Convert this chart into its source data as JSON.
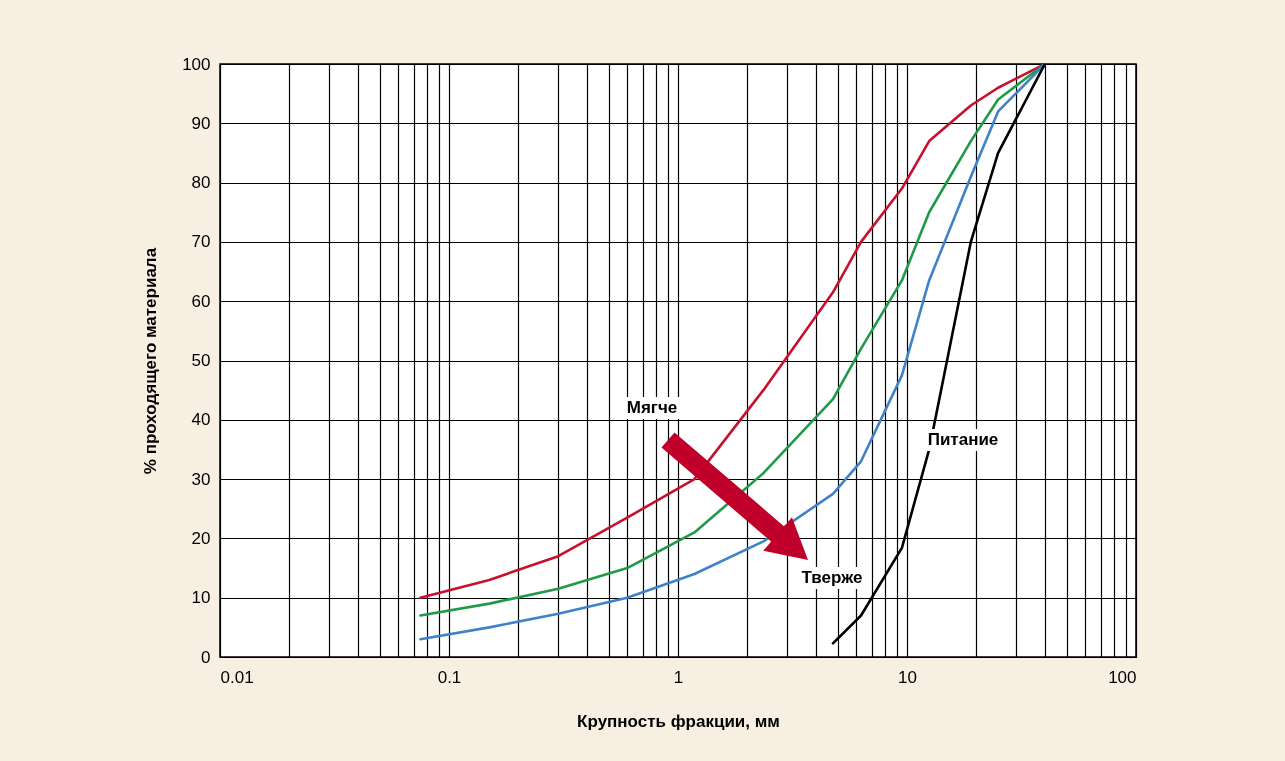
{
  "chart_data": {
    "type": "line",
    "xlabel": "Крупность фракции, мм",
    "ylabel": "% проходящего материала",
    "x": [
      0.075,
      0.15,
      0.3,
      0.6,
      1.18,
      2.36,
      4.75,
      6.3,
      9.5,
      12.5,
      19,
      25,
      40
    ],
    "series": [
      {
        "color": "#c8102e",
        "values": [
          10,
          13,
          17,
          23.5,
          30,
          45,
          61.5,
          70,
          79,
          87,
          93,
          96,
          100
        ]
      },
      {
        "color": "#1f9a48",
        "values": [
          7,
          9,
          11.5,
          15,
          21,
          31,
          43.5,
          52,
          63.5,
          75,
          87,
          94,
          100
        ]
      },
      {
        "color": "#3f82c9",
        "values": [
          3,
          5,
          7.3,
          10,
          14,
          19.5,
          27.5,
          33,
          47.5,
          63.5,
          81,
          92,
          100
        ]
      },
      {
        "color": "#000000",
        "x": [
          4.75,
          6.3,
          9.5,
          12.5,
          19,
          25,
          40
        ],
        "values": [
          2.3,
          7,
          18.4,
          35,
          70,
          85,
          100
        ]
      }
    ],
    "log": "x",
    "xlim": [
      0.01,
      100
    ],
    "xticks": [
      0.01,
      {
        "value": 0.02,
        "label": null
      },
      {
        "value": 0.03,
        "label": null
      },
      {
        "value": 0.04,
        "label": null
      },
      {
        "value": 0.05,
        "label": null
      },
      {
        "value": 0.06,
        "label": null
      },
      {
        "value": 0.07,
        "label": null
      },
      {
        "value": 0.08,
        "label": null
      },
      {
        "value": 0.09,
        "label": null
      },
      0.1,
      {
        "value": 0.2,
        "label": null
      },
      {
        "value": 0.3,
        "label": null
      },
      {
        "value": 0.4,
        "label": null
      },
      {
        "value": 0.5,
        "label": null
      },
      {
        "value": 0.6,
        "label": null
      },
      {
        "value": 0.7,
        "label": null
      },
      {
        "value": 0.8,
        "label": null
      },
      {
        "value": 0.9,
        "label": null
      },
      1,
      {
        "value": 2,
        "label": null
      },
      {
        "value": 3,
        "label": null
      },
      {
        "value": 4,
        "label": null
      },
      {
        "value": 5,
        "label": null
      },
      {
        "value": 6,
        "label": null
      },
      {
        "value": 7,
        "label": null
      },
      {
        "value": 8,
        "label": null
      },
      {
        "value": 9,
        "label": null
      },
      10,
      {
        "value": 20,
        "label": null
      },
      {
        "value": 30,
        "label": null
      },
      {
        "value": 40,
        "label": null
      },
      {
        "value": 50,
        "label": null
      },
      {
        "value": 60,
        "label": null
      },
      {
        "value": 70,
        "label": null
      },
      {
        "value": 80,
        "label": null
      },
      {
        "value": 90,
        "label": null
      },
      100
    ],
    "ylim": [
      0,
      100
    ],
    "yticks": [
      0,
      10,
      20,
      30,
      40,
      50,
      60,
      70,
      80,
      90,
      100
    ],
    "grid": true,
    "marker": "none",
    "line_style": "solid",
    "annotations": [
      "Мягче",
      "Тверже",
      "Питание"
    ]
  }
}
